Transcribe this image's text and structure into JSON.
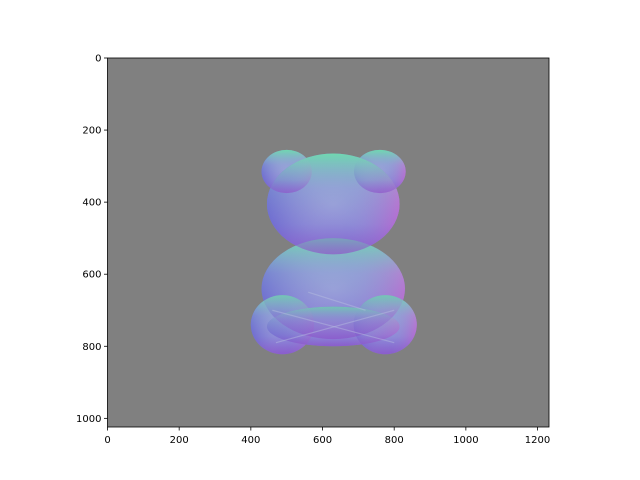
{
  "chart_data": {
    "type": "image",
    "title": "",
    "xlabel": "",
    "ylabel": "",
    "image_size": [
      1232,
      1024
    ],
    "xlim": [
      0,
      1232
    ],
    "ylim": [
      1024,
      0
    ],
    "y_inverted": true,
    "xticks": [
      0,
      200,
      400,
      600,
      800,
      1000,
      1200
    ],
    "yticks": [
      0,
      200,
      400,
      600,
      800,
      1000
    ],
    "xtick_labels": [
      "0",
      "200",
      "400",
      "600",
      "800",
      "1000",
      "1200"
    ],
    "ytick_labels": [
      "0",
      "200",
      "400",
      "600",
      "800",
      "1000"
    ],
    "grid": false,
    "legend": "none",
    "content": "surface-normal map of a teddy bear",
    "colors": {
      "background": "#808080",
      "normal_left": "#6a6ad0",
      "normal_right": "#d060d0",
      "normal_up": "#70d0b0",
      "normal_front": "#9a9ad8"
    }
  }
}
